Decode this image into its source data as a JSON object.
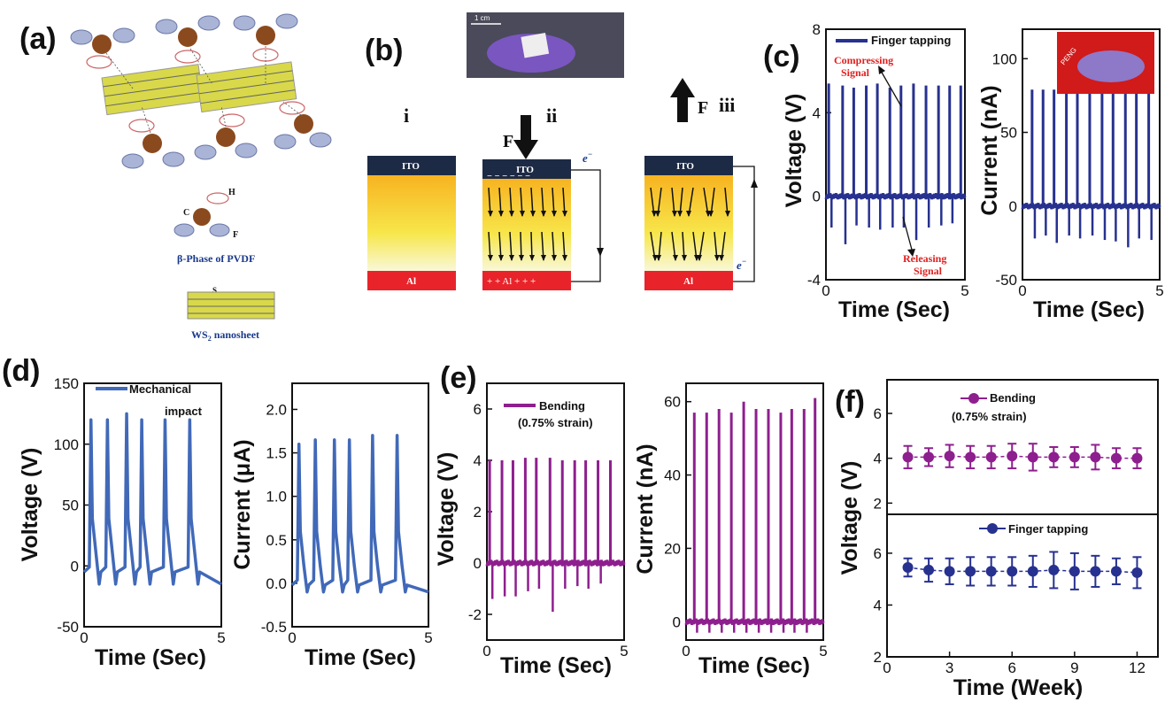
{
  "panels": {
    "a": {
      "letter": "(a)",
      "atom_labels": {
        "h": "H",
        "c": "C",
        "f": "F",
        "s": "S",
        "w": "W"
      },
      "pvdf_caption": "β-Phase of PVDF",
      "ws2_caption_main": "WS",
      "ws2_caption_sub": "2",
      "ws2_caption_rest": " nanosheet"
    },
    "b": {
      "letter": "(b)",
      "scale_label": "1 cm",
      "stages": [
        "i",
        "ii",
        "iii"
      ],
      "force_label": "F",
      "top_electrode": "ITO",
      "bottom_electrode": "Al",
      "electron": "e",
      "electron_sup": "−",
      "plus_row": "+   +   Al  +   + +",
      "minus_row": "−  −  −  −  −  −"
    },
    "c": {
      "letter": "(c)",
      "legend": "Finger tapping",
      "compress_1": "Compressing",
      "compress_2": "Signal",
      "release_1": "Releasing",
      "release_2": "Signal",
      "inset_text": "PENG"
    },
    "d": {
      "letter": "(d)",
      "legend_1": "Mechanical",
      "legend_2": "impact"
    },
    "e": {
      "letter": "(e)",
      "legend_1": "Bending",
      "legend_2": "(0.75% strain)"
    },
    "f": {
      "letter": "(f)",
      "legend_top_1": "Bending",
      "legend_top_2": "(0.75% strain)",
      "legend_bottom": "Finger tapping"
    }
  },
  "colors": {
    "blue": "#27318f",
    "steel_blue": "#4169b8",
    "purple": "#8e1f8e",
    "red": "#e02020"
  },
  "chart_data": [
    {
      "id": "c_voltage",
      "type": "line",
      "xlabel": "Time (Sec)",
      "ylabel": "Voltage (V)",
      "xlim": [
        0,
        5
      ],
      "ylim": [
        -4,
        8
      ],
      "xticks": [
        "0",
        "5"
      ],
      "yticks": [
        "-4",
        "0",
        "4",
        "8"
      ],
      "series": [
        {
          "name": "Finger tapping",
          "peak_times": [
            0.1,
            0.6,
            1.0,
            1.45,
            1.85,
            2.3,
            2.7,
            3.15,
            3.6,
            4.05,
            4.45,
            4.85
          ],
          "peak_values": [
            5.4,
            5.3,
            5.2,
            5.3,
            5.4,
            5.2,
            5.3,
            5.4,
            5.3,
            5.3,
            5.3,
            5.3
          ],
          "trough_times": [
            0.2,
            0.7,
            1.1,
            1.55,
            1.95,
            2.4,
            2.8,
            3.25,
            3.7,
            4.15,
            4.55
          ],
          "trough_values": [
            -1.5,
            -2.3,
            -1.4,
            -1.5,
            -1.6,
            -1.5,
            -1.5,
            -2.1,
            -1.5,
            -1.4,
            -1.3
          ]
        }
      ]
    },
    {
      "id": "c_current",
      "type": "line",
      "xlabel": "Time (Sec)",
      "ylabel": "Current (nA)",
      "xlim": [
        0,
        5
      ],
      "ylim": [
        -50,
        120
      ],
      "xticks": [
        "0",
        "5"
      ],
      "yticks": [
        "-50",
        "0",
        "50",
        "100"
      ],
      "series": [
        {
          "name": "",
          "peak_times": [
            0.35,
            0.75,
            1.15,
            1.6,
            2.0,
            2.45,
            2.9,
            3.3,
            3.75,
            4.15,
            4.6
          ],
          "peak_values": [
            79,
            79,
            79,
            79,
            79,
            79,
            79,
            79,
            79,
            79,
            79
          ],
          "trough_times": [
            0.45,
            0.85,
            1.25,
            1.7,
            2.1,
            2.55,
            3.0,
            3.4,
            3.85,
            4.25,
            4.7
          ],
          "trough_values": [
            -22,
            -20,
            -25,
            -20,
            -22,
            -20,
            -23,
            -24,
            -28,
            -22,
            -23
          ]
        }
      ]
    },
    {
      "id": "d_voltage",
      "type": "line",
      "xlabel": "Time (Sec)",
      "ylabel": "Voltage (V)",
      "xlim": [
        0,
        5
      ],
      "ylim": [
        -50,
        150
      ],
      "xticks": [
        "0",
        "5"
      ],
      "yticks": [
        "-50",
        "0",
        "50",
        "100",
        "150"
      ],
      "series": [
        {
          "name": "Mechanical impact",
          "peak_times": [
            0.25,
            0.85,
            1.55,
            2.1,
            2.95,
            3.85
          ],
          "peak_values": [
            120,
            120,
            125,
            120,
            120,
            120
          ],
          "baseline": -5,
          "dip": -15
        }
      ]
    },
    {
      "id": "d_current",
      "type": "line",
      "xlabel": "Time (Sec)",
      "ylabel": "Current (μA)",
      "xlim": [
        0,
        5
      ],
      "ylim": [
        -0.5,
        2.3
      ],
      "xticks": [
        "0",
        "5"
      ],
      "yticks": [
        "-0.5",
        "0.0",
        "0.5",
        "1.0",
        "1.5",
        "2.0"
      ],
      "series": [
        {
          "name": "",
          "peak_times": [
            0.25,
            0.85,
            1.55,
            2.1,
            2.95,
            3.85
          ],
          "peak_values": [
            1.6,
            1.65,
            1.65,
            1.65,
            1.7,
            1.7
          ],
          "baseline": -0.02,
          "dip": -0.1
        }
      ]
    },
    {
      "id": "e_voltage",
      "type": "line",
      "xlabel": "Time (Sec)",
      "ylabel": "Voltage (V)",
      "xlim": [
        0,
        5
      ],
      "ylim": [
        -3,
        7
      ],
      "xticks": [
        "0",
        "5"
      ],
      "yticks": [
        "-2",
        "0",
        "2",
        "4",
        "6"
      ],
      "series": [
        {
          "name": "Bending (0.75% strain)",
          "peak_times": [
            0.1,
            0.55,
            0.95,
            1.4,
            1.8,
            2.3,
            2.75,
            3.2,
            3.6,
            4.05,
            4.5
          ],
          "peak_values": [
            4.0,
            4.0,
            4.0,
            4.1,
            4.1,
            4.1,
            4.0,
            4.0,
            4.0,
            4.0,
            4.0
          ],
          "trough_times": [
            0.2,
            0.65,
            1.05,
            1.5,
            1.9,
            2.4,
            2.85,
            3.3,
            3.7,
            4.15
          ],
          "trough_values": [
            -1.4,
            -1.3,
            -1.3,
            -1.1,
            -1.0,
            -1.9,
            -1.0,
            -0.9,
            -1.0,
            -0.8
          ]
        }
      ]
    },
    {
      "id": "e_current",
      "type": "line",
      "xlabel": "Time (Sec)",
      "ylabel": "Current (nA)",
      "xlim": [
        0,
        5
      ],
      "ylim": [
        -5,
        65
      ],
      "xticks": [
        "0",
        "5"
      ],
      "yticks": [
        "0",
        "20",
        "40",
        "60"
      ],
      "series": [
        {
          "name": "",
          "peak_times": [
            0.3,
            0.75,
            1.2,
            1.65,
            2.1,
            2.55,
            3.0,
            3.45,
            3.85,
            4.3,
            4.7
          ],
          "peak_values": [
            57,
            57,
            58,
            57,
            60,
            58,
            58,
            57,
            58,
            58,
            61
          ],
          "trough_times": [
            0.4,
            0.85,
            1.3,
            1.75,
            2.2,
            2.65,
            3.1,
            3.55,
            3.95,
            4.4
          ],
          "trough_values": [
            -3,
            -3,
            -3,
            -3,
            -3,
            -3,
            -3,
            -3,
            -3,
            -3
          ]
        }
      ]
    },
    {
      "id": "f_top",
      "type": "scatter",
      "xlabel": "",
      "ylabel": "",
      "xlim": [
        0,
        13
      ],
      "ylim": [
        1.5,
        7.5
      ],
      "xticks": [],
      "yticks": [
        "2",
        "4",
        "6"
      ],
      "series": [
        {
          "name": "Bending (0.75% strain)",
          "x": [
            1,
            2,
            3,
            4,
            5,
            6,
            7,
            8,
            9,
            10,
            11,
            12
          ],
          "y": [
            4.05,
            4.05,
            4.1,
            4.05,
            4.05,
            4.1,
            4.05,
            4.05,
            4.05,
            4.05,
            4.0,
            4.0
          ],
          "err": [
            0.5,
            0.4,
            0.5,
            0.5,
            0.5,
            0.55,
            0.6,
            0.45,
            0.45,
            0.55,
            0.45,
            0.45
          ]
        }
      ]
    },
    {
      "id": "f_bottom",
      "type": "scatter",
      "xlabel": "Time (Week)",
      "ylabel": "Voltage (V)",
      "xlim": [
        0,
        13
      ],
      "ylim": [
        2,
        7.5
      ],
      "xticks": [
        "0",
        "3",
        "6",
        "9",
        "12"
      ],
      "yticks": [
        "2",
        "4",
        "6"
      ],
      "series": [
        {
          "name": "Finger tapping",
          "x": [
            1,
            2,
            3,
            4,
            5,
            6,
            7,
            8,
            9,
            10,
            11,
            12
          ],
          "y": [
            5.45,
            5.35,
            5.3,
            5.3,
            5.3,
            5.3,
            5.3,
            5.35,
            5.3,
            5.3,
            5.3,
            5.25
          ],
          "err": [
            0.35,
            0.45,
            0.5,
            0.55,
            0.55,
            0.55,
            0.6,
            0.7,
            0.7,
            0.6,
            0.5,
            0.6
          ]
        }
      ]
    }
  ]
}
